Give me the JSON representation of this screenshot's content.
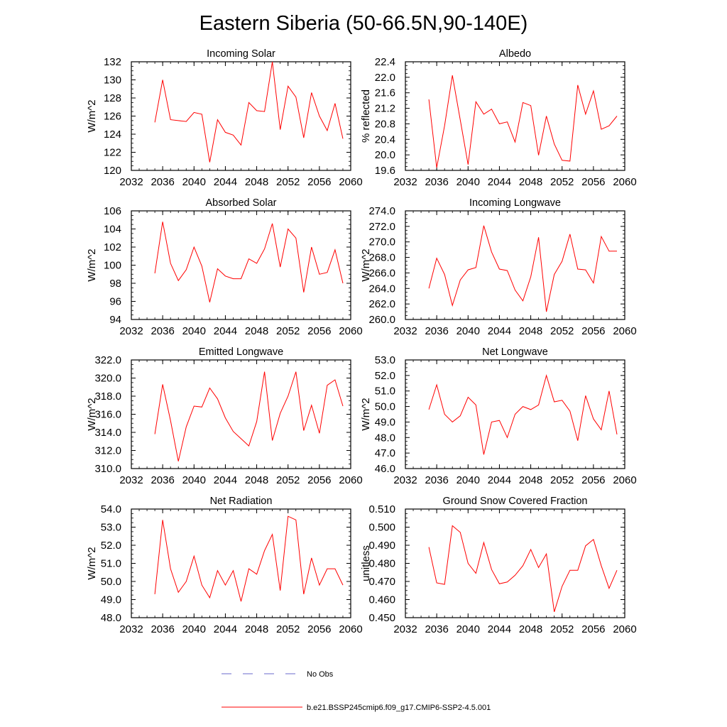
{
  "title": "Eastern Siberia (50-66.5N,90-140E)",
  "legend": {
    "obs_label": "No Obs",
    "obs_color": "#6a6acc",
    "model_label": "b.e21.BSSP245cmip6.f09_g17.CMIP6-SSP2-4.5.001",
    "model_color": "#ff0000"
  },
  "chart_data": [
    {
      "type": "line",
      "title": "Incoming Solar",
      "ylabel": "W/m^2",
      "xlim": [
        2032,
        2060
      ],
      "ylim": [
        120,
        132
      ],
      "xticks": [
        "2032",
        "2036",
        "2040",
        "2044",
        "2048",
        "2052",
        "2056",
        "2060"
      ],
      "yticks": [
        "120",
        "122",
        "124",
        "126",
        "128",
        "130",
        "132"
      ],
      "series": [
        {
          "x": [
            2035,
            2036,
            2037,
            2038,
            2039,
            2040,
            2041,
            2042,
            2043,
            2044,
            2045,
            2046,
            2047,
            2048,
            2049,
            2050,
            2051,
            2052,
            2053,
            2054,
            2055,
            2056,
            2057,
            2058,
            2059
          ],
          "values": [
            125.3,
            130.0,
            125.6,
            125.5,
            125.4,
            126.4,
            126.2,
            120.9,
            125.6,
            124.2,
            123.9,
            122.8,
            127.5,
            126.6,
            126.5,
            132.0,
            124.5,
            129.3,
            128.1,
            123.6,
            128.6,
            126.0,
            124.4,
            127.4,
            123.5
          ]
        }
      ]
    },
    {
      "type": "line",
      "title": "Albedo",
      "ylabel": "% reflected",
      "xlim": [
        2032,
        2060
      ],
      "ylim": [
        19.6,
        22.4
      ],
      "xticks": [
        "2032",
        "2036",
        "2040",
        "2044",
        "2048",
        "2052",
        "2056",
        "2060"
      ],
      "yticks": [
        "19.6",
        "20.0",
        "20.4",
        "20.8",
        "21.2",
        "21.6",
        "22.0",
        "22.4"
      ],
      "series": [
        {
          "x": [
            2035,
            2036,
            2037,
            2038,
            2039,
            2040,
            2041,
            2042,
            2043,
            2044,
            2045,
            2046,
            2047,
            2048,
            2049,
            2050,
            2051,
            2052,
            2053,
            2054,
            2055,
            2056,
            2057,
            2058,
            2059
          ],
          "values": [
            21.43,
            19.67,
            20.75,
            22.05,
            20.9,
            19.75,
            21.37,
            21.05,
            21.18,
            20.8,
            20.85,
            20.33,
            21.35,
            21.27,
            19.99,
            21.0,
            20.28,
            19.86,
            19.84,
            21.8,
            21.05,
            21.65,
            20.66,
            20.75,
            21.0
          ]
        }
      ]
    },
    {
      "type": "line",
      "title": "Absorbed Solar",
      "ylabel": "W/m^2",
      "xlim": [
        2032,
        2060
      ],
      "ylim": [
        94,
        106
      ],
      "xticks": [
        "2032",
        "2036",
        "2040",
        "2044",
        "2048",
        "2052",
        "2056",
        "2060"
      ],
      "yticks": [
        "94",
        "96",
        "98",
        "100",
        "102",
        "104",
        "106"
      ],
      "series": [
        {
          "x": [
            2035,
            2036,
            2037,
            2038,
            2039,
            2040,
            2041,
            2042,
            2043,
            2044,
            2045,
            2046,
            2047,
            2048,
            2049,
            2050,
            2051,
            2052,
            2053,
            2054,
            2055,
            2056,
            2057,
            2058,
            2059
          ],
          "values": [
            99.1,
            104.8,
            100.2,
            98.3,
            99.5,
            102.0,
            99.9,
            95.9,
            99.6,
            98.8,
            98.5,
            98.5,
            100.7,
            100.2,
            101.8,
            104.6,
            99.8,
            104.0,
            103.0,
            97.0,
            102.0,
            99.0,
            99.2,
            101.7,
            98.0
          ]
        }
      ]
    },
    {
      "type": "line",
      "title": "Incoming Longwave",
      "ylabel": "W/m^2",
      "xlim": [
        2032,
        2060
      ],
      "ylim": [
        260.0,
        274.0
      ],
      "xticks": [
        "2032",
        "2036",
        "2040",
        "2044",
        "2048",
        "2052",
        "2056",
        "2060"
      ],
      "yticks": [
        "260.0",
        "262.0",
        "264.0",
        "266.0",
        "268.0",
        "270.0",
        "272.0",
        "274.0"
      ],
      "series": [
        {
          "x": [
            2035,
            2036,
            2037,
            2038,
            2039,
            2040,
            2041,
            2042,
            2043,
            2044,
            2045,
            2046,
            2047,
            2048,
            2049,
            2050,
            2051,
            2052,
            2053,
            2054,
            2055,
            2056,
            2057,
            2058,
            2059
          ],
          "values": [
            264.0,
            267.9,
            265.8,
            261.8,
            265.1,
            266.4,
            266.7,
            272.1,
            268.7,
            266.5,
            266.3,
            263.8,
            262.4,
            265.5,
            270.6,
            261.0,
            265.8,
            267.5,
            271.0,
            266.5,
            266.4,
            264.7,
            270.7,
            268.8,
            268.8
          ]
        }
      ]
    },
    {
      "type": "line",
      "title": "Emitted Longwave",
      "ylabel": "W/m^2",
      "xlim": [
        2032,
        2060
      ],
      "ylim": [
        310.0,
        322.0
      ],
      "xticks": [
        "2032",
        "2036",
        "2040",
        "2044",
        "2048",
        "2052",
        "2056",
        "2060"
      ],
      "yticks": [
        "310.0",
        "312.0",
        "314.0",
        "316.0",
        "318.0",
        "320.0",
        "322.0"
      ],
      "series": [
        {
          "x": [
            2035,
            2036,
            2037,
            2038,
            2039,
            2040,
            2041,
            2042,
            2043,
            2044,
            2045,
            2046,
            2047,
            2048,
            2049,
            2050,
            2051,
            2052,
            2053,
            2054,
            2055,
            2056,
            2057,
            2058,
            2059
          ],
          "values": [
            313.8,
            319.3,
            315.3,
            310.8,
            314.6,
            316.9,
            316.8,
            318.9,
            317.7,
            315.6,
            314.1,
            313.3,
            312.5,
            315.2,
            320.7,
            313.1,
            316.1,
            318.0,
            320.7,
            314.2,
            317.0,
            313.9,
            319.2,
            319.8,
            316.9
          ]
        }
      ]
    },
    {
      "type": "line",
      "title": "Net Longwave",
      "ylabel": "W/m^2",
      "xlim": [
        2032,
        2060
      ],
      "ylim": [
        46.0,
        53.0
      ],
      "xticks": [
        "2032",
        "2036",
        "2040",
        "2044",
        "2048",
        "2052",
        "2056",
        "2060"
      ],
      "yticks": [
        "46.0",
        "47.0",
        "48.0",
        "49.0",
        "50.0",
        "51.0",
        "52.0",
        "53.0"
      ],
      "series": [
        {
          "x": [
            2035,
            2036,
            2037,
            2038,
            2039,
            2040,
            2041,
            2042,
            2043,
            2044,
            2045,
            2046,
            2047,
            2048,
            2049,
            2050,
            2051,
            2052,
            2053,
            2054,
            2055,
            2056,
            2057,
            2058,
            2059
          ],
          "values": [
            49.8,
            51.4,
            49.5,
            49.0,
            49.4,
            50.6,
            50.1,
            46.9,
            49.0,
            49.1,
            48.0,
            49.5,
            50.0,
            49.8,
            50.1,
            52.0,
            50.3,
            50.4,
            49.7,
            47.8,
            50.7,
            49.2,
            48.5,
            51.0,
            48.2
          ]
        }
      ]
    },
    {
      "type": "line",
      "title": "Net Radiation",
      "ylabel": "W/m^2",
      "xlim": [
        2032,
        2060
      ],
      "ylim": [
        48.0,
        54.0
      ],
      "xticks": [
        "2032",
        "2036",
        "2040",
        "2044",
        "2048",
        "2052",
        "2056",
        "2060"
      ],
      "yticks": [
        "48.0",
        "49.0",
        "50.0",
        "51.0",
        "52.0",
        "53.0",
        "54.0"
      ],
      "series": [
        {
          "x": [
            2035,
            2036,
            2037,
            2038,
            2039,
            2040,
            2041,
            2042,
            2043,
            2044,
            2045,
            2046,
            2047,
            2048,
            2049,
            2050,
            2051,
            2052,
            2053,
            2054,
            2055,
            2056,
            2057,
            2058,
            2059
          ],
          "values": [
            49.3,
            53.4,
            50.7,
            49.4,
            50.0,
            51.4,
            49.8,
            49.1,
            50.6,
            49.8,
            50.6,
            48.9,
            50.7,
            50.4,
            51.7,
            52.6,
            49.5,
            53.6,
            53.4,
            49.3,
            51.3,
            49.8,
            50.7,
            50.7,
            49.8
          ]
        }
      ]
    },
    {
      "type": "line",
      "title": "Ground Snow Covered Fraction",
      "ylabel": "unitless",
      "xlim": [
        2032,
        2060
      ],
      "ylim": [
        0.45,
        0.51
      ],
      "xticks": [
        "2032",
        "2036",
        "2040",
        "2044",
        "2048",
        "2052",
        "2056",
        "2060"
      ],
      "yticks": [
        "0.450",
        "0.460",
        "0.470",
        "0.480",
        "0.490",
        "0.500",
        "0.510"
      ],
      "series": [
        {
          "x": [
            2035,
            2036,
            2037,
            2038,
            2039,
            2040,
            2041,
            2042,
            2043,
            2044,
            2045,
            2046,
            2047,
            2048,
            2049,
            2050,
            2051,
            2052,
            2053,
            2054,
            2055,
            2056,
            2057,
            2058,
            2059
          ],
          "values": [
            0.489,
            0.4692,
            0.4684,
            0.5008,
            0.4971,
            0.48,
            0.4745,
            0.4915,
            0.4766,
            0.4687,
            0.4697,
            0.4734,
            0.4787,
            0.4877,
            0.4777,
            0.4852,
            0.4532,
            0.4673,
            0.4762,
            0.4762,
            0.4897,
            0.4932,
            0.4787,
            0.4662,
            0.4762
          ]
        }
      ]
    }
  ]
}
